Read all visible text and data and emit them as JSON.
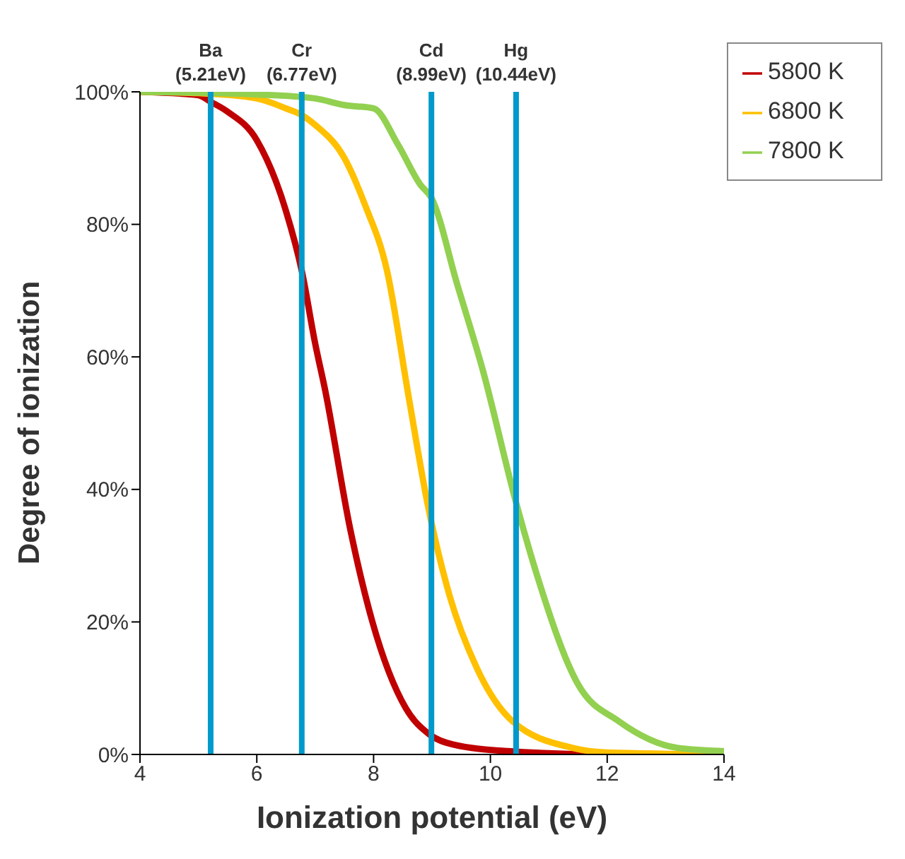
{
  "chart_data": {
    "type": "line",
    "xlabel": "Ionization potential (eV)",
    "ylabel": "Degree of ionization",
    "xlim": [
      4,
      14
    ],
    "xticks": [
      4,
      6,
      8,
      10,
      12,
      14
    ],
    "ylim": [
      0,
      100
    ],
    "yticks": [
      {
        "value": 0,
        "label": "0%"
      },
      {
        "value": 20,
        "label": "20%"
      },
      {
        "value": 40,
        "label": "40%"
      },
      {
        "value": 60,
        "label": "60%"
      },
      {
        "value": 80,
        "label": "80%"
      },
      {
        "value": 100,
        "label": "100%"
      }
    ],
    "grid": false,
    "legend": "top right",
    "marker": "none",
    "line_style": "solid",
    "series": [
      {
        "name": "5800 K",
        "color": "#c00000",
        "x": [
          4,
          5,
          5.21,
          5.5,
          6,
          6.5,
          6.77,
          7,
          7.17,
          7.6,
          7.98,
          8.55,
          8.96,
          9.36,
          10.3,
          12,
          14
        ],
        "values": [
          100,
          99.5,
          98.5,
          97,
          92.7,
          82,
          73,
          62,
          55,
          34,
          20,
          7,
          3,
          1.5,
          0.5,
          0,
          0
        ]
      },
      {
        "name": "6800 K",
        "color": "#ffc000",
        "x": [
          4,
          5,
          6,
          6.5,
          6.77,
          7,
          7.5,
          7.85,
          8.23,
          8.6,
          8.92,
          9.3,
          9.77,
          10.38,
          11.4,
          12,
          14
        ],
        "values": [
          100,
          99.8,
          99,
          97.5,
          96.5,
          95,
          90,
          83,
          73,
          54,
          38,
          24,
          13,
          5,
          1,
          0.3,
          0
        ]
      },
      {
        "name": "7800 K",
        "color": "#92d050",
        "x": [
          4,
          6,
          7,
          7.5,
          8,
          8.42,
          8.8,
          8.99,
          9.43,
          9.87,
          10.44,
          10.8,
          11.5,
          12.2,
          13.2,
          14
        ],
        "values": [
          100,
          99.6,
          99,
          98,
          97.5,
          92,
          86,
          84,
          71,
          58,
          38,
          27,
          10.6,
          5,
          1,
          0.5
        ]
      }
    ],
    "ref_lines": [
      {
        "axis": "x",
        "value": 5.21,
        "label": "Ba\n(5.21eV)",
        "color": "#0099cc"
      },
      {
        "axis": "x",
        "value": 6.77,
        "label": "Cr\n(6.77eV)",
        "color": "#0099cc"
      },
      {
        "axis": "x",
        "value": 8.99,
        "label": "Cd\n(8.99eV)",
        "color": "#0099cc"
      },
      {
        "axis": "x",
        "value": 10.44,
        "label": "Hg\n(10.44eV)",
        "color": "#0099cc"
      }
    ]
  }
}
